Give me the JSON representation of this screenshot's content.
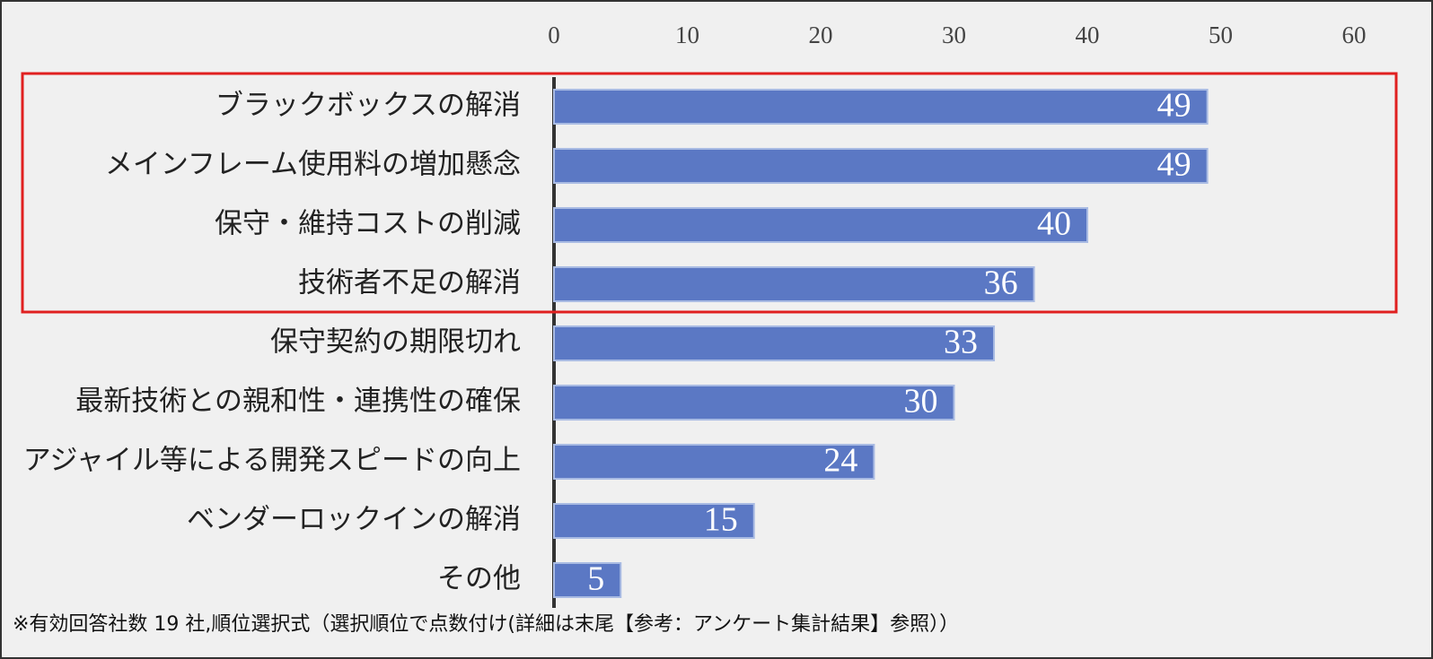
{
  "chart_data": {
    "type": "bar",
    "orientation": "horizontal",
    "categories": [
      "ブラックボックスの解消",
      "メインフレーム使用料の増加懸念",
      "保守・維持コストの削減",
      "技術者不足の解消",
      "保守契約の期限切れ",
      "最新技術との親和性・連携性の確保",
      "アジャイル等による開発スピードの向上",
      "ベンダーロックインの解消",
      "その他"
    ],
    "values": [
      49,
      49,
      40,
      36,
      33,
      30,
      24,
      15,
      5
    ],
    "color": "#5b78c4",
    "xlim": [
      0,
      60
    ],
    "xticks": [
      0,
      10,
      20,
      30,
      40,
      50,
      60
    ],
    "grid": true,
    "note": "※有効回答社数 19 社,順位選択式（選択順位で点数付け(詳細は末尾【参考：アンケート集計結果】参照））"
  }
}
